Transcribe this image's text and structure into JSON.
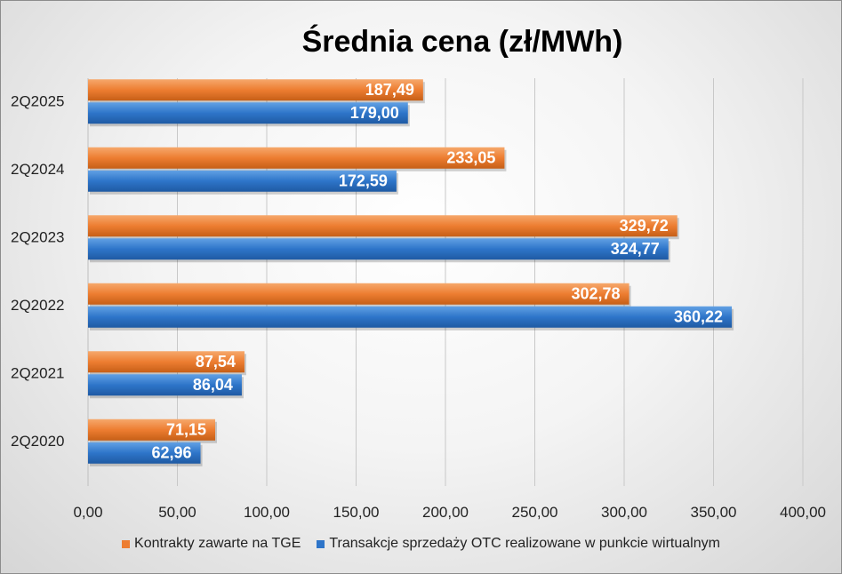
{
  "chart_data": {
    "type": "bar",
    "orientation": "horizontal",
    "title": "Średnia cena (zł/MWh)",
    "categories": [
      "2Q2025",
      "2Q2024",
      "2Q2023",
      "2Q2022",
      "2Q2021",
      "2Q2020"
    ],
    "series": [
      {
        "name": "Kontrakty zawarte na TGE",
        "color": "#ed7d31",
        "values": [
          187.49,
          233.05,
          329.72,
          302.78,
          87.54,
          71.15
        ],
        "labels": [
          "187,49",
          "233,05",
          "329,72",
          "302,78",
          "87,54",
          "71,15"
        ]
      },
      {
        "name": "Transakcje sprzedaży OTC realizowane w punkcie wirtualnym",
        "color": "#2e75c9",
        "values": [
          179.0,
          172.59,
          324.77,
          360.22,
          86.04,
          62.96
        ],
        "labels": [
          "179,00",
          "172,59",
          "324,77",
          "360,22",
          "86,04",
          "62,96"
        ]
      }
    ],
    "xlim": [
      0,
      400
    ],
    "x_ticks": [
      0,
      50,
      100,
      150,
      200,
      250,
      300,
      350,
      400
    ],
    "x_tick_labels": [
      "0,00",
      "50,00",
      "100,00",
      "150,00",
      "200,00",
      "250,00",
      "300,00",
      "350,00",
      "400,00"
    ],
    "grid": true,
    "legend_position": "bottom"
  }
}
